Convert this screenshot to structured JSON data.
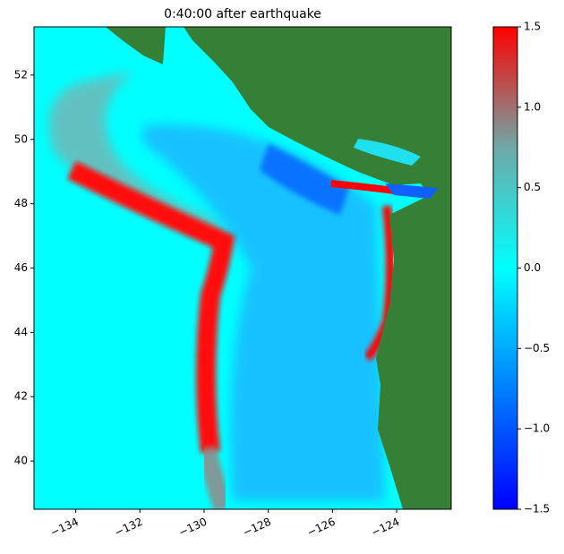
{
  "chart_data": {
    "type": "map",
    "title": "0:40:00 after earthquake",
    "xlim": [
      -135.3,
      -122.3
    ],
    "ylim": [
      38.5,
      53.5
    ],
    "xticks": [
      {
        "value": -134,
        "label": "−134"
      },
      {
        "value": -132,
        "label": "−132"
      },
      {
        "value": -130,
        "label": "−130"
      },
      {
        "value": -128,
        "label": "−128"
      },
      {
        "value": -126,
        "label": "−126"
      },
      {
        "value": -124,
        "label": "−124"
      }
    ],
    "yticks": [
      40,
      42,
      44,
      46,
      48,
      50,
      52
    ],
    "colorbar": {
      "lim": [
        -1.5,
        1.5
      ],
      "ticks": [
        {
          "value": -1.5,
          "label": "−1.5"
        },
        {
          "value": -1.0,
          "label": "−1.0"
        },
        {
          "value": -0.5,
          "label": "−0.5"
        },
        {
          "value": 0,
          "label": "0.0"
        },
        {
          "value": 0.5,
          "label": "0.5"
        },
        {
          "value": 1.0,
          "label": "1.0"
        },
        1.5
      ],
      "colors": [
        "#0000ff",
        "#0080ff",
        "#00ffff",
        "#70a8a8",
        "#ff0000"
      ]
    }
  }
}
